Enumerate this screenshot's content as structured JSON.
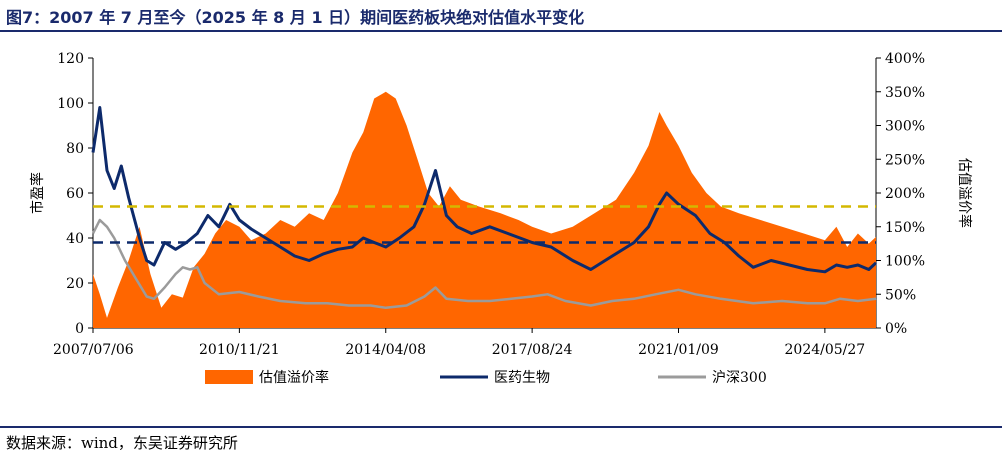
{
  "figure": {
    "title": "图7：2007 年 7 月至今（2025 年 8 月 1 日）期间医药板块绝对估值水平变化",
    "source": "数据来源：wind，东吴证券研究所"
  },
  "colors": {
    "premium": "#ff6600",
    "pharma": "#0d2a6b",
    "hs300": "#9b9b9b",
    "ref_high": "#d4b800",
    "ref_low": "#0d2a6b"
  },
  "chart_data": {
    "type": "line",
    "x_tick_labels": [
      "2007/07/06",
      "2010/11/21",
      "2014/04/08",
      "2017/08/24",
      "2021/01/09",
      "2024/05/27"
    ],
    "x_range": [
      "2007/07/06",
      "2025/08/01"
    ],
    "ylabel": "市盈率",
    "y2label": "估值溢价率",
    "ylim": [
      0,
      120
    ],
    "y_ticks": [
      "0",
      "20",
      "40",
      "60",
      "80",
      "100",
      "120"
    ],
    "y2lim": [
      0,
      400
    ],
    "y2_ticks": [
      "0%",
      "50%",
      "100%",
      "150%",
      "200%",
      "250%",
      "300%",
      "350%",
      "400%"
    ],
    "legend_position": "bottom",
    "series": [
      {
        "name": "估值溢价率",
        "kind": "area",
        "axis": "right",
        "points": [
          [
            "2007/07/06",
            80
          ],
          [
            "2007/09/01",
            50
          ],
          [
            "2007/11/01",
            15
          ],
          [
            "2008/02/01",
            60
          ],
          [
            "2008/05/01",
            100
          ],
          [
            "2008/08/01",
            150
          ],
          [
            "2008/11/01",
            80
          ],
          [
            "2009/02/01",
            30
          ],
          [
            "2009/05/01",
            50
          ],
          [
            "2009/08/01",
            45
          ],
          [
            "2009/11/01",
            90
          ],
          [
            "2010/02/01",
            110
          ],
          [
            "2010/05/01",
            140
          ],
          [
            "2010/08/01",
            160
          ],
          [
            "2010/11/21",
            150
          ],
          [
            "2011/03/01",
            130
          ],
          [
            "2011/07/01",
            140
          ],
          [
            "2011/11/01",
            160
          ],
          [
            "2012/03/01",
            150
          ],
          [
            "2012/07/01",
            170
          ],
          [
            "2012/11/01",
            160
          ],
          [
            "2013/03/01",
            200
          ],
          [
            "2013/07/01",
            260
          ],
          [
            "2013/10/01",
            290
          ],
          [
            "2014/01/01",
            340
          ],
          [
            "2014/04/08",
            350
          ],
          [
            "2014/07/01",
            340
          ],
          [
            "2014/10/01",
            300
          ],
          [
            "2015/01/01",
            250
          ],
          [
            "2015/04/01",
            200
          ],
          [
            "2015/07/01",
            180
          ],
          [
            "2015/10/01",
            210
          ],
          [
            "2016/01/01",
            190
          ],
          [
            "2016/06/01",
            180
          ],
          [
            "2016/12/01",
            170
          ],
          [
            "2017/05/01",
            160
          ],
          [
            "2017/08/24",
            150
          ],
          [
            "2018/02/01",
            140
          ],
          [
            "2018/08/01",
            150
          ],
          [
            "2019/02/01",
            170
          ],
          [
            "2019/08/01",
            190
          ],
          [
            "2020/01/01",
            230
          ],
          [
            "2020/05/01",
            270
          ],
          [
            "2020/08/01",
            320
          ],
          [
            "2020/10/01",
            300
          ],
          [
            "2021/01/09",
            270
          ],
          [
            "2021/05/01",
            230
          ],
          [
            "2021/09/01",
            200
          ],
          [
            "2022/01/01",
            180
          ],
          [
            "2022/06/01",
            170
          ],
          [
            "2022/12/01",
            160
          ],
          [
            "2023/06/01",
            150
          ],
          [
            "2023/12/01",
            140
          ],
          [
            "2024/05/27",
            130
          ],
          [
            "2024/09/01",
            150
          ],
          [
            "2024/12/01",
            120
          ],
          [
            "2025/03/01",
            140
          ],
          [
            "2025/06/01",
            125
          ],
          [
            "2025/08/01",
            135
          ]
        ]
      },
      {
        "name": "医药生物",
        "kind": "line",
        "axis": "left",
        "points": [
          [
            "2007/07/06",
            78
          ],
          [
            "2007/09/01",
            98
          ],
          [
            "2007/11/01",
            70
          ],
          [
            "2008/01/01",
            62
          ],
          [
            "2008/03/01",
            72
          ],
          [
            "2008/05/01",
            58
          ],
          [
            "2008/08/01",
            40
          ],
          [
            "2008/10/01",
            30
          ],
          [
            "2008/12/01",
            28
          ],
          [
            "2009/03/01",
            38
          ],
          [
            "2009/06/01",
            35
          ],
          [
            "2009/09/01",
            38
          ],
          [
            "2009/12/01",
            42
          ],
          [
            "2010/03/01",
            50
          ],
          [
            "2010/06/01",
            45
          ],
          [
            "2010/09/01",
            55
          ],
          [
            "2010/11/21",
            48
          ],
          [
            "2011/03/01",
            44
          ],
          [
            "2011/07/01",
            40
          ],
          [
            "2011/11/01",
            36
          ],
          [
            "2012/03/01",
            32
          ],
          [
            "2012/07/01",
            30
          ],
          [
            "2012/11/01",
            33
          ],
          [
            "2013/03/01",
            35
          ],
          [
            "2013/07/01",
            36
          ],
          [
            "2013/10/01",
            40
          ],
          [
            "2014/01/01",
            38
          ],
          [
            "2014/04/08",
            36
          ],
          [
            "2014/08/01",
            40
          ],
          [
            "2014/12/01",
            45
          ],
          [
            "2015/03/01",
            55
          ],
          [
            "2015/06/01",
            70
          ],
          [
            "2015/09/01",
            50
          ],
          [
            "2015/12/01",
            45
          ],
          [
            "2016/04/01",
            42
          ],
          [
            "2016/09/01",
            45
          ],
          [
            "2017/02/01",
            42
          ],
          [
            "2017/08/24",
            38
          ],
          [
            "2018/02/01",
            36
          ],
          [
            "2018/08/01",
            30
          ],
          [
            "2019/01/01",
            26
          ],
          [
            "2019/07/01",
            32
          ],
          [
            "2020/01/01",
            38
          ],
          [
            "2020/05/01",
            45
          ],
          [
            "2020/08/01",
            55
          ],
          [
            "2020/10/01",
            60
          ],
          [
            "2021/01/09",
            55
          ],
          [
            "2021/06/01",
            50
          ],
          [
            "2021/10/01",
            42
          ],
          [
            "2022/02/01",
            38
          ],
          [
            "2022/06/01",
            32
          ],
          [
            "2022/10/01",
            27
          ],
          [
            "2023/03/01",
            30
          ],
          [
            "2023/08/01",
            28
          ],
          [
            "2024/01/01",
            26
          ],
          [
            "2024/05/27",
            25
          ],
          [
            "2024/09/01",
            28
          ],
          [
            "2024/12/01",
            27
          ],
          [
            "2025/03/01",
            28
          ],
          [
            "2025/06/01",
            26
          ],
          [
            "2025/08/01",
            29
          ]
        ]
      },
      {
        "name": "沪深300",
        "kind": "line",
        "axis": "left",
        "points": [
          [
            "2007/07/06",
            42
          ],
          [
            "2007/09/01",
            48
          ],
          [
            "2007/11/01",
            45
          ],
          [
            "2008/01/01",
            40
          ],
          [
            "2008/04/01",
            30
          ],
          [
            "2008/07/01",
            22
          ],
          [
            "2008/10/01",
            14
          ],
          [
            "2008/12/01",
            13
          ],
          [
            "2009/03/01",
            18
          ],
          [
            "2009/06/01",
            24
          ],
          [
            "2009/08/01",
            27
          ],
          [
            "2009/10/01",
            26
          ],
          [
            "2009/12/01",
            27
          ],
          [
            "2010/02/01",
            20
          ],
          [
            "2010/06/01",
            15
          ],
          [
            "2010/11/21",
            16
          ],
          [
            "2011/05/01",
            14
          ],
          [
            "2011/11/01",
            12
          ],
          [
            "2012/06/01",
            11
          ],
          [
            "2012/12/01",
            11
          ],
          [
            "2013/06/01",
            10
          ],
          [
            "2013/12/01",
            10
          ],
          [
            "2014/04/08",
            9
          ],
          [
            "2014/10/01",
            10
          ],
          [
            "2015/03/01",
            14
          ],
          [
            "2015/06/01",
            18
          ],
          [
            "2015/09/01",
            13
          ],
          [
            "2016/03/01",
            12
          ],
          [
            "2016/09/01",
            12
          ],
          [
            "2017/03/01",
            13
          ],
          [
            "2017/08/24",
            14
          ],
          [
            "2018/01/01",
            15
          ],
          [
            "2018/06/01",
            12
          ],
          [
            "2019/01/01",
            10
          ],
          [
            "2019/07/01",
            12
          ],
          [
            "2020/01/01",
            13
          ],
          [
            "2020/07/01",
            15
          ],
          [
            "2021/01/09",
            17
          ],
          [
            "2021/06/01",
            15
          ],
          [
            "2022/01/01",
            13
          ],
          [
            "2022/10/01",
            11
          ],
          [
            "2023/06/01",
            12
          ],
          [
            "2024/01/01",
            11
          ],
          [
            "2024/05/27",
            11
          ],
          [
            "2024/10/01",
            13
          ],
          [
            "2025/03/01",
            12
          ],
          [
            "2025/08/01",
            13
          ]
        ]
      }
    ],
    "reference_lines": [
      {
        "axis": "left",
        "value": 54,
        "color_key": "ref_high",
        "style": "dashed"
      },
      {
        "axis": "left",
        "value": 38,
        "color_key": "ref_low",
        "style": "dashed"
      }
    ]
  }
}
